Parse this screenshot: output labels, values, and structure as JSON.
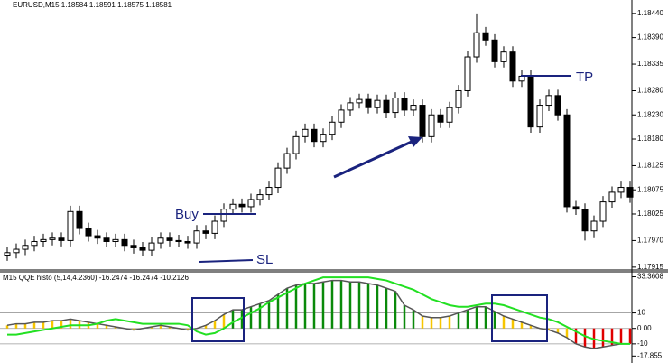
{
  "chart_data": [
    {
      "type": "candlestick",
      "title": "EURUSD,M15 1.18584 1.18591 1.18575 1.18581",
      "open": [
        1.1794,
        1.17945,
        1.17952,
        1.1796,
        1.17968,
        1.17972,
        1.17975,
        1.1797,
        1.1803,
        1.17995,
        1.1798,
        1.17975,
        1.17968,
        1.17972,
        1.1796,
        1.17955,
        1.1795,
        1.17965,
        1.17975,
        1.1797,
        1.17968,
        1.17965,
        1.1799,
        1.17985,
        1.1801,
        1.18035,
        1.18045,
        1.1804,
        1.18055,
        1.18065,
        1.1808,
        1.1812,
        1.1815,
        1.18185,
        1.182,
        1.18175,
        1.1819,
        1.18215,
        1.1824,
        1.18255,
        1.18262,
        1.18245,
        1.1826,
        1.18235,
        1.18265,
        1.1824,
        1.1825,
        1.18185,
        1.1823,
        1.18215,
        1.18245,
        1.1828,
        1.1835,
        1.184,
        1.18385,
        1.1834,
        1.1836,
        1.183,
        1.1831,
        1.18205,
        1.1825,
        1.1827,
        1.1823,
        1.1804,
        1.18035,
        1.1799,
        1.1801,
        1.1805,
        1.1807,
        1.1808
      ],
      "high": [
        1.17957,
        1.17964,
        1.17972,
        1.1798,
        1.17984,
        1.17987,
        1.17987,
        1.18042,
        1.18042,
        1.18007,
        1.17992,
        1.17987,
        1.17984,
        1.17984,
        1.17972,
        1.17967,
        1.17977,
        1.17987,
        1.17987,
        1.17982,
        1.1798,
        1.18002,
        1.18002,
        1.18022,
        1.18047,
        1.18057,
        1.18057,
        1.18067,
        1.18077,
        1.18092,
        1.18132,
        1.18162,
        1.18197,
        1.18212,
        1.18212,
        1.18202,
        1.18227,
        1.18252,
        1.18267,
        1.18274,
        1.18274,
        1.18272,
        1.18272,
        1.18277,
        1.18277,
        1.18262,
        1.18262,
        1.18242,
        1.18242,
        1.18257,
        1.18292,
        1.18362,
        1.1844,
        1.18412,
        1.18397,
        1.18372,
        1.18372,
        1.18322,
        1.18322,
        1.18262,
        1.18282,
        1.18282,
        1.18242,
        1.18052,
        1.18047,
        1.18022,
        1.18062,
        1.18082,
        1.18092,
        1.18092
      ],
      "low": [
        1.17928,
        1.17933,
        1.1794,
        1.17948,
        1.17956,
        1.1796,
        1.17958,
        1.17958,
        1.17983,
        1.17968,
        1.17963,
        1.17956,
        1.17956,
        1.17948,
        1.17943,
        1.17938,
        1.17938,
        1.17953,
        1.17958,
        1.17956,
        1.17953,
        1.17953,
        1.17973,
        1.17973,
        1.17998,
        1.18023,
        1.18028,
        1.18028,
        1.18043,
        1.18053,
        1.18068,
        1.18108,
        1.18138,
        1.18173,
        1.18163,
        1.18163,
        1.18178,
        1.18203,
        1.18228,
        1.18243,
        1.18233,
        1.18233,
        1.18223,
        1.18223,
        1.18228,
        1.18228,
        1.18173,
        1.18173,
        1.18203,
        1.18203,
        1.18233,
        1.18268,
        1.18338,
        1.18373,
        1.18328,
        1.18328,
        1.18288,
        1.18288,
        1.18193,
        1.18193,
        1.18238,
        1.18218,
        1.18028,
        1.18023,
        1.1797,
        1.17975,
        1.17998,
        1.18038,
        1.18058,
        1.18048
      ],
      "close": [
        1.17945,
        1.17952,
        1.1796,
        1.17968,
        1.17972,
        1.17975,
        1.1797,
        1.1803,
        1.17995,
        1.1798,
        1.17975,
        1.17968,
        1.17972,
        1.1796,
        1.17955,
        1.1795,
        1.17965,
        1.17975,
        1.1797,
        1.17968,
        1.17965,
        1.1799,
        1.17985,
        1.1801,
        1.18035,
        1.18045,
        1.1804,
        1.18055,
        1.18065,
        1.1808,
        1.1812,
        1.1815,
        1.18185,
        1.182,
        1.18175,
        1.1819,
        1.18215,
        1.1824,
        1.18255,
        1.18262,
        1.18245,
        1.1826,
        1.18235,
        1.18265,
        1.1824,
        1.1825,
        1.18185,
        1.1823,
        1.18215,
        1.18245,
        1.1828,
        1.1835,
        1.184,
        1.18385,
        1.1834,
        1.1836,
        1.183,
        1.1831,
        1.18205,
        1.1825,
        1.1827,
        1.1823,
        1.1804,
        1.18035,
        1.1799,
        1.1801,
        1.1805,
        1.1807,
        1.1808,
        1.1806
      ],
      "ylim": [
        1.17911,
        1.18464
      ],
      "yticks": [
        {
          "value": 1.1844,
          "label": "1.18440"
        },
        {
          "value": 1.1839,
          "label": "1.18390"
        },
        {
          "value": 1.18335,
          "label": "1.18335"
        },
        {
          "value": 1.1828,
          "label": "1.18280"
        },
        {
          "value": 1.1823,
          "label": "1.18230"
        },
        {
          "value": 1.1818,
          "label": "1.18180"
        },
        {
          "value": 1.18125,
          "label": "1.18125"
        },
        {
          "value": 1.18075,
          "label": "1.18075"
        },
        {
          "value": 1.18025,
          "label": "1.18025"
        },
        {
          "value": 1.1797,
          "label": "1.17970"
        },
        {
          "value": 1.17915,
          "label": "1.17915"
        }
      ],
      "annotations": {
        "buy": "Buy",
        "sl": "SL",
        "tp": "TP"
      }
    },
    {
      "type": "histogram-oscillator",
      "title": "M15 QQE histo (5,14,4.2360) -16.2474 -16.2474 -10.2126",
      "values": [
        2,
        3,
        3,
        4,
        4,
        5,
        5,
        6,
        5,
        4,
        3,
        2,
        1,
        0,
        -1,
        0,
        1,
        2,
        1,
        0,
        -1,
        0,
        2,
        5,
        9,
        12,
        12,
        14,
        16,
        18,
        22,
        26,
        28,
        29,
        29,
        30,
        31,
        31,
        30,
        30,
        29,
        28,
        26,
        24,
        15,
        12,
        8,
        7,
        7,
        8,
        10,
        12,
        14,
        14,
        11,
        8,
        6,
        4,
        2,
        0,
        -1,
        -3,
        -6,
        -10,
        -12,
        -13,
        -12,
        -11,
        -10,
        -10
      ],
      "colors": [
        "#f7c600",
        "#f7c600",
        "#f7c600",
        "#f7c600",
        "#f7c600",
        "#f7c600",
        "#f7c600",
        "#f7c600",
        "#f7c600",
        "#f7c600",
        "#f7c600",
        "#f7c600",
        "#f7c600",
        "#f7c600",
        "#f7c600",
        "#f7c600",
        "#f7c600",
        "#f7c600",
        "#f7c600",
        "#f7c600",
        "#f7c600",
        "#f7c600",
        "#f7c600",
        "#f7c600",
        "#f7c600",
        "#0a8a0a",
        "#0a8a0a",
        "#0a8a0a",
        "#0a8a0a",
        "#0a8a0a",
        "#0a8a0a",
        "#0a8a0a",
        "#0a8a0a",
        "#0a8a0a",
        "#0a8a0a",
        "#0a8a0a",
        "#0a8a0a",
        "#0a8a0a",
        "#0a8a0a",
        "#0a8a0a",
        "#0a8a0a",
        "#0a8a0a",
        "#0a8a0a",
        "#0a8a0a",
        "#0a8a0a",
        "#0a8a0a",
        "#f7c600",
        "#f7c600",
        "#f7c600",
        "#f7c600",
        "#0a8a0a",
        "#0a8a0a",
        "#0a8a0a",
        "#0a8a0a",
        "#0a8a0a",
        "#f7c600",
        "#f7c600",
        "#f7c600",
        "#f7c600",
        "#f7c600",
        "#f7c600",
        "#f7c600",
        "#f7c600",
        "#e00000",
        "#e00000",
        "#e00000",
        "#e00000",
        "#e00000",
        "#e00000",
        "#e00000"
      ],
      "line_color": "#555555",
      "signal": {
        "color": "#22e022",
        "values": [
          -4,
          -4,
          -3,
          -2,
          -1,
          0,
          1,
          2,
          2,
          2,
          3,
          5,
          6,
          5,
          4,
          3,
          3,
          3,
          3,
          3,
          2,
          -2,
          -4,
          -3,
          0,
          4,
          7,
          10,
          13,
          17,
          20,
          23,
          26,
          29,
          31,
          33,
          33,
          33,
          33,
          33,
          33,
          32,
          31,
          29,
          27,
          25,
          22,
          19,
          17,
          15,
          14,
          14,
          15,
          16,
          16,
          15,
          13,
          11,
          9,
          7,
          6,
          4,
          1,
          -2,
          -5,
          -7,
          -8,
          -9,
          -10,
          -10
        ]
      },
      "levels": [
        10,
        0,
        -10
      ],
      "ylim": [
        -20,
        36
      ],
      "yticks": [
        33.3608,
        10,
        {
          "value": 0,
          "label": "0.00"
        },
        -10,
        -17.855
      ]
    }
  ]
}
